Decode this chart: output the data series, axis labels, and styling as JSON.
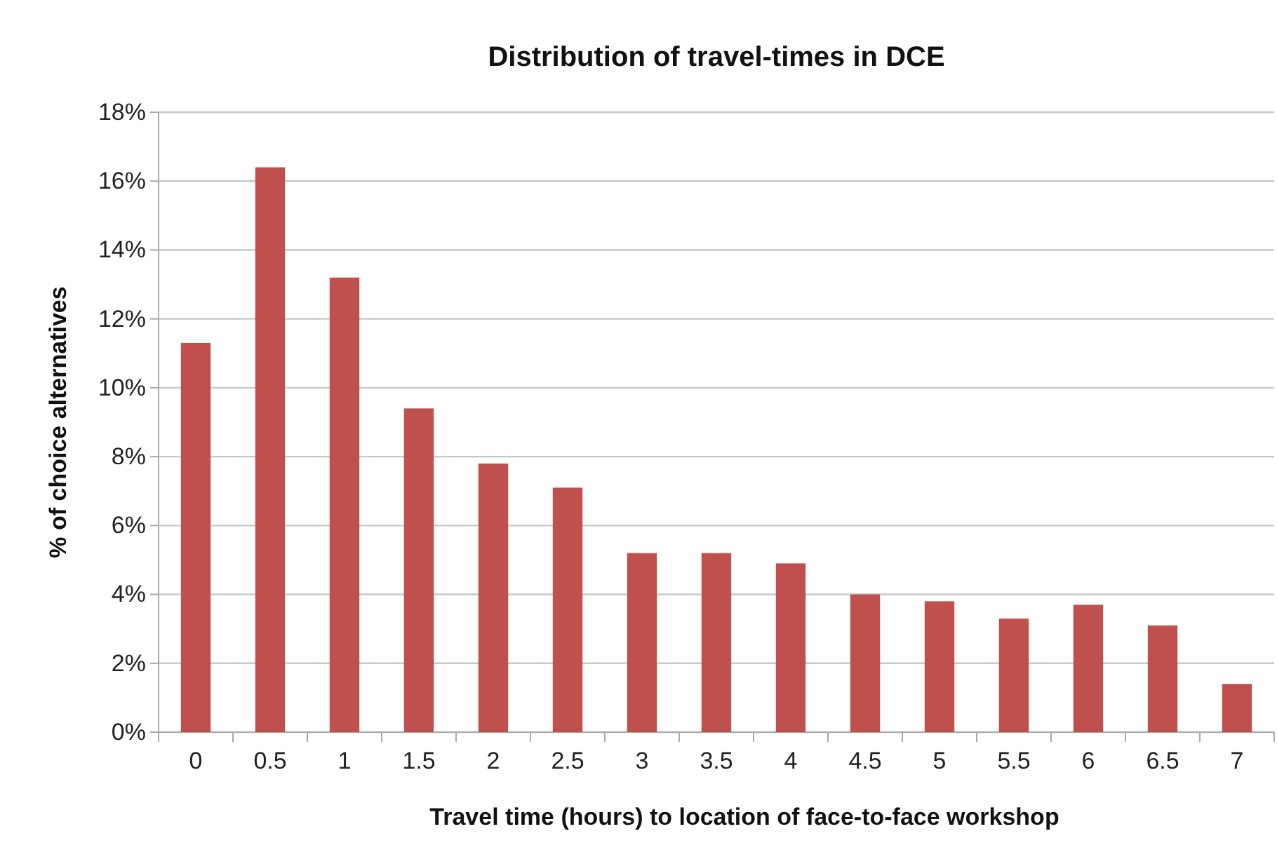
{
  "chart_data": {
    "type": "bar",
    "title": "Distribution of travel-times in DCE",
    "xlabel": "Travel time (hours) to location of face-to-face workshop",
    "ylabel": "% of choice alternatives",
    "categories": [
      "0",
      "0.5",
      "1",
      "1.5",
      "2",
      "2.5",
      "3",
      "3.5",
      "4",
      "4.5",
      "5",
      "5.5",
      "6",
      "6.5",
      "7"
    ],
    "values": [
      11.3,
      16.4,
      13.2,
      9.4,
      7.8,
      7.1,
      5.2,
      5.2,
      4.9,
      4.0,
      3.8,
      3.3,
      3.7,
      3.1,
      1.4
    ],
    "color": "#c0504d",
    "ylim": [
      0,
      18
    ],
    "yticks": [
      {
        "value": 0,
        "label": "0%"
      },
      {
        "value": 2,
        "label": "2%"
      },
      {
        "value": 4,
        "label": "4%"
      },
      {
        "value": 6,
        "label": "6%"
      },
      {
        "value": 8,
        "label": "8%"
      },
      {
        "value": 10,
        "label": "10%"
      },
      {
        "value": 12,
        "label": "12%"
      },
      {
        "value": 14,
        "label": "14%"
      },
      {
        "value": 16,
        "label": "16%"
      },
      {
        "value": 18,
        "label": "18%"
      }
    ],
    "grid": "y"
  }
}
